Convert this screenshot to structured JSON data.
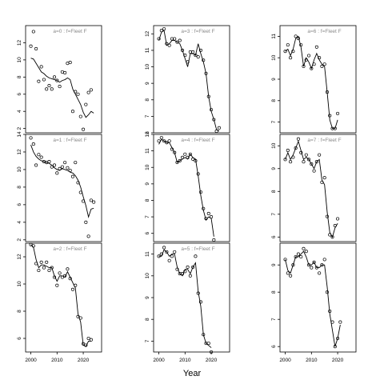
{
  "chart_data": {
    "type": "scatter",
    "xlabel": "Year",
    "years": [
      2000,
      2001,
      2002,
      2003,
      2004,
      2005,
      2006,
      2007,
      2008,
      2009,
      2010,
      2011,
      2012,
      2013,
      2014,
      2015,
      2016,
      2017,
      2018,
      2019,
      2020,
      2021,
      2022,
      2023,
      2024,
      2025
    ],
    "x_ticks": [
      2000,
      2010,
      2020
    ],
    "xlim": [
      1998,
      2027
    ],
    "panels": [
      {
        "label": "a=0  :  f=Fleet F",
        "ylim": [
          1.5,
          14
        ],
        "yticks": [
          2,
          4,
          6,
          8,
          10,
          12
        ],
        "observed": [
          11.6,
          13.3,
          11.3,
          7.5,
          9.2,
          7.7,
          6.6,
          7.0,
          6.6,
          8.0,
          7.6,
          6.9,
          8.6,
          8.5,
          9.6,
          9.7,
          4.0,
          6.3,
          6.0,
          3.4,
          1.9,
          4.8,
          6.2,
          6.5
        ],
        "fitted": [
          10.2,
          10.1,
          9.6,
          9.1,
          8.6,
          8.4,
          8.1,
          7.9,
          7.8,
          7.7,
          7.6,
          7.4,
          7.6,
          7.7,
          7.9,
          7.7,
          6.6,
          6.0,
          5.4,
          4.8,
          3.9,
          3.3,
          3.6,
          4.0,
          3.8
        ]
      },
      {
        "label": "a=1  :  f=Fleet F",
        "ylim": [
          1.8,
          14
        ],
        "yticks": [
          2,
          4,
          6,
          8,
          10,
          12,
          14
        ],
        "observed": [
          13.6,
          12.9,
          10.5,
          11.7,
          11.4,
          10.9,
          10.8,
          10.9,
          10.3,
          10.5,
          9.6,
          10.1,
          10.3,
          10.8,
          10.2,
          9.9,
          9.2,
          10.8,
          8.5,
          7.4,
          6.4,
          4.0,
          2.4,
          6.5,
          6.3
        ],
        "fitted": [
          12.8,
          12.0,
          11.5,
          11.2,
          11.0,
          10.9,
          10.8,
          10.7,
          10.5,
          10.2,
          10.0,
          9.9,
          10.1,
          10.0,
          9.9,
          9.7,
          9.6,
          9.3,
          8.8,
          8.0,
          6.9,
          5.9,
          4.6,
          5.5,
          5.6
        ]
      },
      {
        "label": "a=2  :  f=Fleet F",
        "ylim": [
          5,
          13
        ],
        "yticks": [
          6,
          8,
          10,
          12
        ],
        "observed": [
          12.9,
          12.8,
          11.5,
          11.0,
          11.6,
          11.2,
          11.6,
          11.0,
          11.2,
          10.5,
          9.9,
          10.8,
          10.5,
          10.6,
          11.1,
          10.4,
          9.6,
          9.9,
          7.6,
          7.5,
          5.6,
          5.5,
          6.0,
          5.9
        ],
        "fitted": [
          12.9,
          12.7,
          11.8,
          11.2,
          11.4,
          11.4,
          11.3,
          11.2,
          11.2,
          10.6,
          10.2,
          10.6,
          10.6,
          10.5,
          10.9,
          10.5,
          10.1,
          9.7,
          7.8,
          7.2,
          5.5,
          5.4,
          5.8,
          5.8
        ]
      },
      {
        "label": "a=3  :  f=Fleet F",
        "ylim": [
          6,
          12.5
        ],
        "yticks": [
          6,
          7,
          8,
          9,
          10,
          11,
          12
        ],
        "observed": [
          11.7,
          12.2,
          12.3,
          11.4,
          11.3,
          11.7,
          11.7,
          11.5,
          11.6,
          11.0,
          10.7,
          10.3,
          10.9,
          10.9,
          10.7,
          10.6,
          11.0,
          10.4,
          9.6,
          8.2,
          7.4,
          6.8,
          6.1,
          6.3
        ],
        "fitted": [
          11.6,
          12.1,
          12.2,
          11.3,
          11.4,
          11.6,
          11.6,
          11.5,
          11.4,
          11.0,
          10.5,
          10.0,
          10.8,
          10.8,
          10.7,
          11.4,
          10.8,
          10.3,
          9.6,
          8.2,
          7.3,
          6.8,
          6.2,
          6.1
        ]
      },
      {
        "label": "a=4  :  f=Fleet F",
        "ylim": [
          5.5,
          12
        ],
        "yticks": [
          6,
          7,
          8,
          9,
          10,
          11,
          12
        ],
        "observed": [
          11.6,
          11.8,
          11.6,
          11.5,
          11.6,
          11.1,
          10.9,
          10.3,
          10.4,
          10.6,
          10.8,
          10.6,
          10.8,
          10.5,
          10.4,
          9.6,
          8.5,
          7.5,
          6.9,
          7.2,
          7.0,
          5.6
        ],
        "fitted": [
          11.4,
          11.7,
          11.6,
          11.5,
          11.5,
          11.2,
          10.9,
          10.3,
          10.4,
          10.5,
          10.6,
          10.5,
          10.8,
          10.6,
          10.5,
          9.5,
          8.3,
          7.4,
          6.8,
          7.0,
          6.9,
          5.8
        ]
      },
      {
        "label": "a=5  :  f=Fleet F",
        "ylim": [
          6.5,
          11.5
        ],
        "yticks": [
          7,
          8,
          9,
          10,
          11
        ],
        "observed": [
          10.9,
          11.0,
          11.3,
          11.1,
          10.7,
          10.9,
          11.1,
          10.3,
          10.1,
          10.1,
          10.2,
          10.4,
          10.0,
          10.4,
          10.9,
          9.2,
          8.8,
          7.3,
          6.9,
          6.9,
          6.5
        ],
        "fitted": [
          10.9,
          10.9,
          11.2,
          11.1,
          10.9,
          11.0,
          11.0,
          10.4,
          10.1,
          10.0,
          10.3,
          10.3,
          10.1,
          10.4,
          10.6,
          9.3,
          8.6,
          7.3,
          6.9,
          6.8,
          6.7
        ]
      },
      {
        "label": "a=6  :  f=Fleet F",
        "ylim": [
          6.5,
          11.5
        ],
        "yticks": [
          7,
          8,
          9,
          10,
          11
        ],
        "observed": [
          10.3,
          10.6,
          10.0,
          10.3,
          11.0,
          10.9,
          10.6,
          9.6,
          9.9,
          10.1,
          9.5,
          9.7,
          10.5,
          10.0,
          9.6,
          9.7,
          8.4,
          7.3,
          6.7,
          6.7,
          7.4
        ],
        "fitted": [
          10.3,
          10.4,
          10.1,
          10.4,
          10.9,
          11.0,
          10.5,
          9.6,
          10.0,
          9.8,
          9.5,
          9.9,
          10.2,
          9.9,
          9.7,
          9.6,
          8.4,
          7.1,
          6.7,
          6.7,
          7.1
        ]
      },
      {
        "label": "a=7  :  f=Fleet F",
        "ylim": [
          5.8,
          10.5
        ],
        "yticks": [
          6,
          7,
          8,
          9,
          10
        ],
        "observed": [
          9.4,
          9.8,
          9.3,
          9.5,
          9.9,
          10.3,
          9.7,
          9.3,
          9.6,
          9.4,
          9.2,
          8.9,
          9.3,
          9.6,
          8.4,
          8.6,
          6.9,
          6.1,
          6.0,
          6.5,
          6.8
        ],
        "fitted": [
          9.4,
          9.7,
          9.4,
          9.6,
          9.9,
          10.2,
          9.8,
          9.4,
          9.5,
          9.4,
          9.2,
          9.0,
          9.3,
          9.4,
          8.5,
          8.3,
          7.1,
          6.2,
          6.0,
          6.4,
          6.6
        ]
      },
      {
        "label": "",
        "ylim": [
          5.8,
          9.8
        ],
        "yticks": [
          6,
          7,
          8,
          9
        ],
        "observed": [
          9.2,
          8.7,
          8.6,
          9.0,
          9.3,
          9.4,
          9.3,
          9.6,
          9.5,
          9.0,
          8.9,
          9.1,
          8.9,
          8.7,
          9.0,
          9.2,
          8.0,
          7.3,
          6.9,
          6.0,
          6.3,
          6.9
        ],
        "fitted": [
          9.2,
          8.8,
          8.7,
          9.0,
          9.3,
          9.3,
          9.4,
          9.5,
          9.3,
          9.0,
          9.0,
          9.1,
          8.9,
          8.9,
          9.0,
          9.0,
          8.2,
          7.2,
          6.6,
          6.0,
          6.3,
          6.8
        ]
      }
    ]
  }
}
